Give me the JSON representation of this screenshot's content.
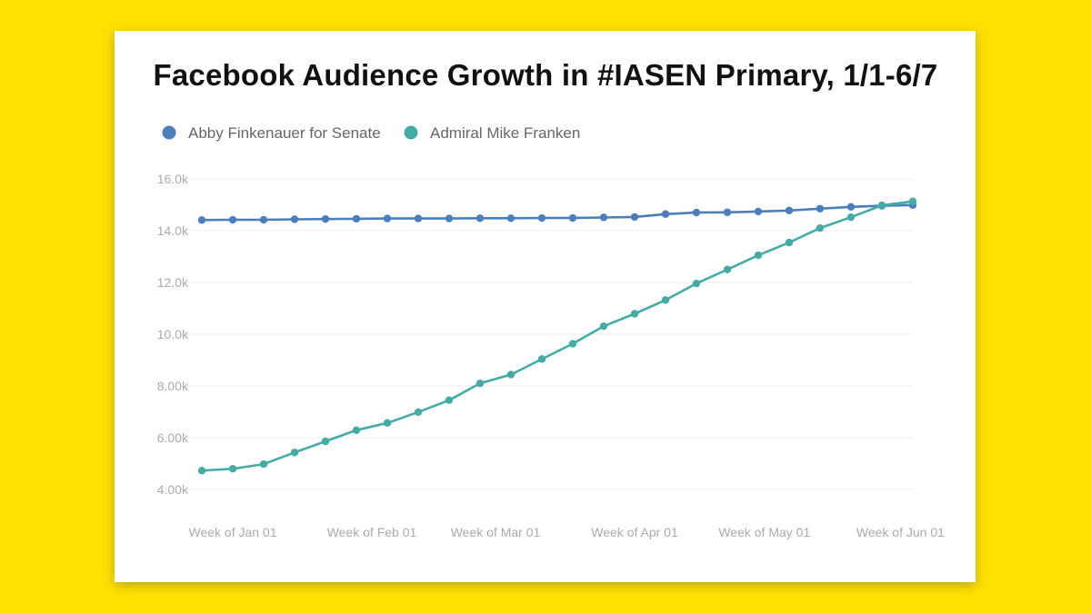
{
  "chart_data": {
    "type": "line",
    "title": "Facebook Audience Growth in #IASEN Primary, 1/1-6/7",
    "xlabel": "",
    "ylabel": "",
    "ylim": [
      4000,
      16000
    ],
    "yticks": [
      {
        "value": 4000,
        "label": "4.00k"
      },
      {
        "value": 6000,
        "label": "6.00k"
      },
      {
        "value": 8000,
        "label": "8.00k"
      },
      {
        "value": 10000,
        "label": "10.0k"
      },
      {
        "value": 12000,
        "label": "12.0k"
      },
      {
        "value": 14000,
        "label": "14.0k"
      },
      {
        "value": 16000,
        "label": "16.0k"
      }
    ],
    "xticks": [
      {
        "index": 1,
        "label": "Week of Jan 01"
      },
      {
        "index": 5.5,
        "label": "Week of Feb 01"
      },
      {
        "index": 9.5,
        "label": "Week of Mar 01"
      },
      {
        "index": 14,
        "label": "Week of Apr 01"
      },
      {
        "index": 18.2,
        "label": "Week of May 01"
      },
      {
        "index": 22.6,
        "label": "Week of Jun 01"
      }
    ],
    "point_count": 24,
    "series": [
      {
        "name": "Abby Finkenauer for Senate",
        "color": "#4a7fbb",
        "values": [
          14410,
          14420,
          14420,
          14440,
          14450,
          14460,
          14470,
          14470,
          14470,
          14480,
          14480,
          14490,
          14490,
          14510,
          14530,
          14640,
          14700,
          14710,
          14740,
          14780,
          14850,
          14920,
          14960,
          14990
        ]
      },
      {
        "name": "Admiral Mike Franken",
        "color": "#45aba5",
        "values": [
          4730,
          4800,
          4980,
          5430,
          5860,
          6290,
          6570,
          6990,
          7450,
          8100,
          8440,
          9040,
          9630,
          10310,
          10790,
          11320,
          11960,
          12500,
          13050,
          13540,
          14100,
          14520,
          14980,
          15130
        ]
      }
    ]
  }
}
